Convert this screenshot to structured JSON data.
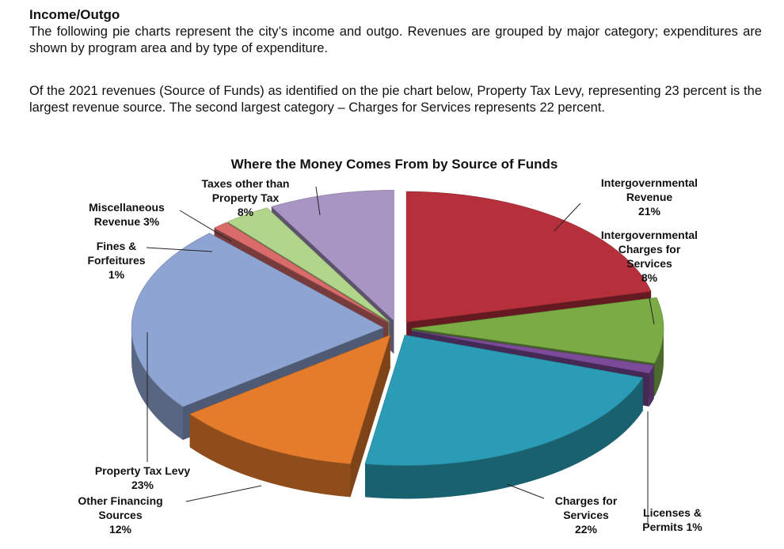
{
  "section": {
    "heading": "Income/Outgo",
    "para1": "The following pie charts represent the city’s income and outgo. Revenues are grouped by major category; expenditures are shown by program area and by type of expenditure.",
    "para2": "Of the 2021 revenues (Source of Funds) as identified on the pie chart below, Property Tax Levy, representing 23 percent is the largest revenue source. The second largest category – Charges for Services represents 22 percent."
  },
  "chart_data": {
    "type": "pie",
    "title": "Where the Money Comes From by Source of Funds",
    "unit": "%",
    "slices": [
      {
        "label": "Intergovernmental Revenue",
        "value": 21,
        "color": "#b5303a"
      },
      {
        "label": "Intergovernmental Charges for Services",
        "value": 8,
        "color": "#7aab45"
      },
      {
        "label": "Licenses & Permits",
        "value": 1,
        "color": "#7b4a99"
      },
      {
        "label": "Charges for Services",
        "value": 22,
        "color": "#2a9cb5"
      },
      {
        "label": "Other Financing Sources",
        "value": 12,
        "color": "#e57c2c"
      },
      {
        "label": "Property Tax Levy",
        "value": 23,
        "color": "#8ea4d2"
      },
      {
        "label": "Fines & Forfeitures",
        "value": 1,
        "color": "#d96b6b"
      },
      {
        "label": "Miscellaneous Revenue",
        "value": 3,
        "color": "#b1d58a"
      },
      {
        "label": "Taxes other than Property Tax",
        "value": 8,
        "color": "#a995c4"
      }
    ],
    "labels": [
      [
        "Intergovernmental",
        "Revenue",
        "21%"
      ],
      [
        "Intergovernmental",
        "Charges for",
        "Services",
        "8%"
      ],
      [
        "Licenses &",
        "Permits  1%"
      ],
      [
        "Charges for",
        "Services",
        "22%"
      ],
      [
        "Other Financing",
        "Sources",
        "12%"
      ],
      [
        "Property Tax Levy",
        "23%"
      ],
      [
        "Fines &",
        "Forfeitures",
        "1%"
      ],
      [
        "Miscellaneous",
        "Revenue 3%"
      ],
      [
        "Taxes other than",
        "Property Tax",
        "8%"
      ]
    ]
  }
}
